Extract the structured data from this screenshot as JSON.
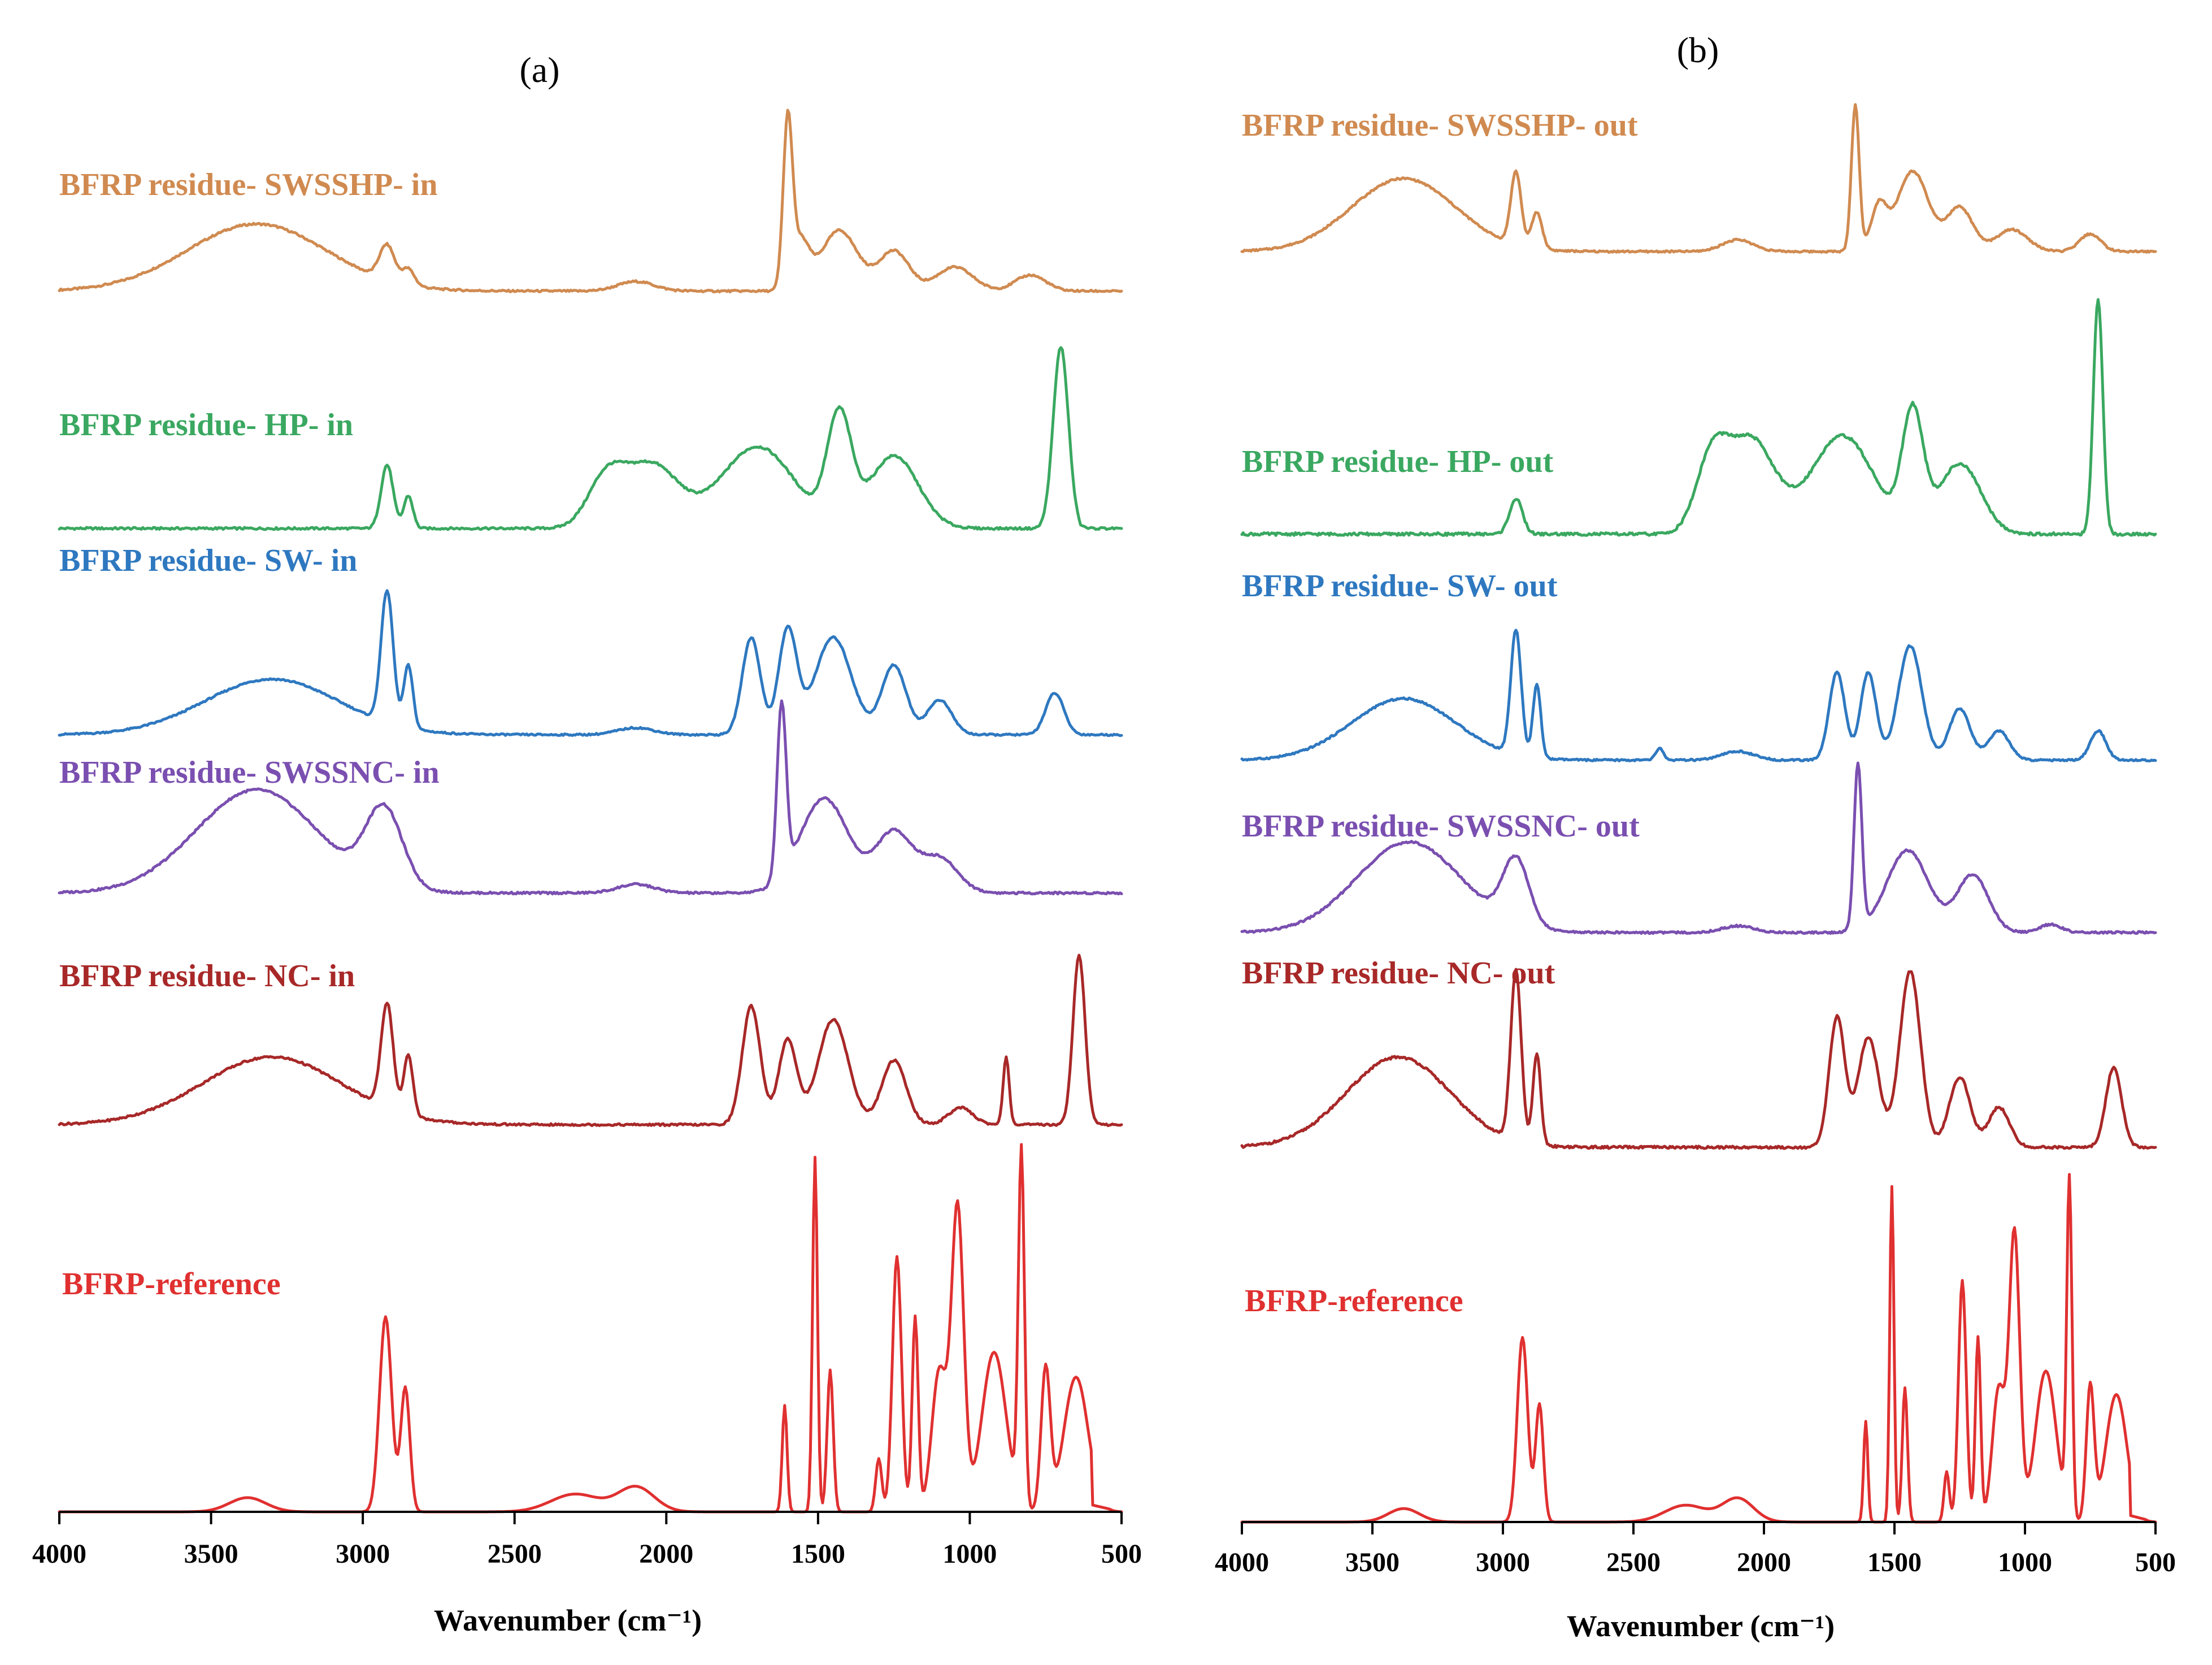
{
  "chart_data": [
    {
      "type": "line",
      "panel": "(a)",
      "xlabel": "Wavenumber (cm⁻¹)",
      "xlim": [
        4000,
        500
      ],
      "x_ticks": [
        "4000",
        "3500",
        "3000",
        "2500",
        "2000",
        "1500",
        "1000",
        "500"
      ],
      "x_tick_values": [
        4000,
        3500,
        3000,
        2500,
        2000,
        1500,
        1000,
        500
      ],
      "ylabel": "",
      "stacked_offset_traces": true,
      "series": [
        {
          "name": "BFRP residue- SWSSHP- in",
          "color": "#d08a50",
          "peaks": [
            [
              3350,
              0.42,
              230
            ],
            [
              2920,
              0.22,
              25
            ],
            [
              2850,
              0.1,
              20
            ],
            [
              2100,
              0.06,
              60
            ],
            [
              1600,
              1.0,
              15
            ],
            [
              1560,
              0.3,
              30
            ],
            [
              1430,
              0.38,
              60
            ],
            [
              1250,
              0.25,
              50
            ],
            [
              1050,
              0.15,
              60
            ],
            [
              800,
              0.1,
              50
            ]
          ],
          "baseline": 0.0,
          "end_drop_at": 640
        },
        {
          "name": "BFRP residue- HP- in",
          "color": "#3aa860",
          "peaks": [
            [
              2920,
              0.35,
              20
            ],
            [
              2850,
              0.18,
              15
            ],
            [
              2200,
              0.25,
              60
            ],
            [
              2050,
              0.35,
              90
            ],
            [
              1700,
              0.45,
              120
            ],
            [
              1430,
              0.6,
              40
            ],
            [
              1250,
              0.4,
              80
            ],
            [
              700,
              1.0,
              25
            ]
          ],
          "baseline": 0.0,
          "end_drop_at": 640
        },
        {
          "name": "BFRP residue- SW- in",
          "color": "#2e78c0",
          "peaks": [
            [
              3300,
              0.4,
              220
            ],
            [
              2920,
              0.95,
              20
            ],
            [
              2850,
              0.45,
              15
            ],
            [
              2100,
              0.05,
              60
            ],
            [
              1720,
              0.7,
              30
            ],
            [
              1600,
              0.75,
              30
            ],
            [
              1450,
              0.7,
              60
            ],
            [
              1250,
              0.5,
              40
            ],
            [
              1100,
              0.25,
              40
            ],
            [
              720,
              0.3,
              30
            ]
          ],
          "baseline": 0.0,
          "end_drop_at": 640
        },
        {
          "name": "BFRP residue- SWSSNC- in",
          "color": "#7a4fb0",
          "peaks": [
            [
              3350,
              0.6,
              200
            ],
            [
              2930,
              0.45,
              60
            ],
            [
              2100,
              0.05,
              60
            ],
            [
              1620,
              1.0,
              15
            ],
            [
              1480,
              0.55,
              80
            ],
            [
              1250,
              0.35,
              60
            ],
            [
              1100,
              0.2,
              60
            ]
          ],
          "baseline": 0.0,
          "end_drop_at": 640
        },
        {
          "name": "BFRP residue- NC- in",
          "color": "#a82828",
          "peaks": [
            [
              3300,
              0.4,
              230
            ],
            [
              2920,
              0.62,
              20
            ],
            [
              2850,
              0.35,
              15
            ],
            [
              1720,
              0.7,
              30
            ],
            [
              1600,
              0.5,
              30
            ],
            [
              1450,
              0.62,
              50
            ],
            [
              1250,
              0.38,
              40
            ],
            [
              1030,
              0.1,
              40
            ],
            [
              880,
              0.4,
              10
            ],
            [
              640,
              1.0,
              20
            ]
          ],
          "baseline": 0.0,
          "end_drop_at": 560
        },
        {
          "name": "BFRP-reference",
          "color": "#e03030",
          "peaks": [
            [
              3380,
              0.04,
              60
            ],
            [
              2925,
              0.55,
              20
            ],
            [
              2860,
              0.35,
              15
            ],
            [
              2300,
              0.05,
              80
            ],
            [
              2100,
              0.07,
              60
            ],
            [
              1610,
              0.3,
              8
            ],
            [
              1510,
              1.0,
              8
            ],
            [
              1460,
              0.4,
              10
            ],
            [
              1300,
              0.15,
              10
            ],
            [
              1240,
              0.72,
              15
            ],
            [
              1180,
              0.55,
              10
            ],
            [
              1100,
              0.4,
              25
            ],
            [
              1040,
              0.85,
              20
            ],
            [
              920,
              0.45,
              40
            ],
            [
              830,
              1.0,
              10
            ],
            [
              750,
              0.4,
              15
            ],
            [
              650,
              0.38,
              40
            ]
          ],
          "baseline": 0.0,
          "end_drop_at": 600
        }
      ]
    },
    {
      "type": "line",
      "panel": "(b)",
      "xlabel": "Wavenumber (cm⁻¹)",
      "xlim": [
        4000,
        500
      ],
      "x_ticks": [
        "4000",
        "3500",
        "3000",
        "2500",
        "2000",
        "1500",
        "1000",
        "500"
      ],
      "x_tick_values": [
        4000,
        3500,
        3000,
        2500,
        2000,
        1500,
        1000,
        500
      ],
      "ylabel": "",
      "stacked_offset_traces": true,
      "series": [
        {
          "name": "BFRP residue- SWSSHP- out",
          "color": "#d08a50",
          "peaks": [
            [
              3380,
              0.5,
              200
            ],
            [
              2950,
              0.5,
              20
            ],
            [
              2870,
              0.25,
              20
            ],
            [
              2100,
              0.08,
              60
            ],
            [
              1650,
              1.0,
              15
            ],
            [
              1560,
              0.3,
              30
            ],
            [
              1430,
              0.55,
              60
            ],
            [
              1250,
              0.3,
              50
            ],
            [
              1050,
              0.15,
              60
            ],
            [
              750,
              0.12,
              40
            ]
          ],
          "baseline": 0.0,
          "end_drop_at": 640
        },
        {
          "name": "BFRP residue- HP- out",
          "color": "#3aa860",
          "peaks": [
            [
              2950,
              0.15,
              25
            ],
            [
              2200,
              0.3,
              60
            ],
            [
              2050,
              0.4,
              90
            ],
            [
              1700,
              0.42,
              120
            ],
            [
              1430,
              0.5,
              40
            ],
            [
              1250,
              0.3,
              80
            ],
            [
              720,
              1.0,
              18
            ]
          ],
          "baseline": 0.0,
          "end_drop_at": 640
        },
        {
          "name": "BFRP residue- SW- out",
          "color": "#2e78c0",
          "peaks": [
            [
              3380,
              0.42,
              200
            ],
            [
              2950,
              0.85,
              20
            ],
            [
              2870,
              0.5,
              15
            ],
            [
              2400,
              0.08,
              15
            ],
            [
              2100,
              0.06,
              60
            ],
            [
              1720,
              0.6,
              30
            ],
            [
              1600,
              0.6,
              30
            ],
            [
              1440,
              0.78,
              45
            ],
            [
              1250,
              0.35,
              40
            ],
            [
              1100,
              0.2,
              40
            ],
            [
              720,
              0.2,
              30
            ]
          ],
          "baseline": 0.0,
          "end_drop_at": 640
        },
        {
          "name": "BFRP residue- SWSSNC- out",
          "color": "#7a4fb0",
          "peaks": [
            [
              3360,
              0.55,
              200
            ],
            [
              2950,
              0.4,
              50
            ],
            [
              2100,
              0.04,
              60
            ],
            [
              1640,
              1.0,
              15
            ],
            [
              1450,
              0.5,
              80
            ],
            [
              1200,
              0.35,
              60
            ],
            [
              900,
              0.05,
              40
            ]
          ],
          "baseline": 0.0,
          "end_drop_at": 640
        },
        {
          "name": "BFRP residue- NC- out",
          "color": "#a82828",
          "peaks": [
            [
              3400,
              0.45,
              200
            ],
            [
              2950,
              0.85,
              20
            ],
            [
              2870,
              0.45,
              15
            ],
            [
              1720,
              0.65,
              30
            ],
            [
              1600,
              0.55,
              40
            ],
            [
              1440,
              0.88,
              40
            ],
            [
              1250,
              0.35,
              40
            ],
            [
              1100,
              0.2,
              40
            ],
            [
              660,
              0.4,
              30
            ]
          ],
          "baseline": 0.0,
          "end_drop_at": 580
        },
        {
          "name": "BFRP-reference",
          "color": "#e03030",
          "peaks": [
            [
              3380,
              0.04,
              60
            ],
            [
              2925,
              0.55,
              20
            ],
            [
              2860,
              0.35,
              15
            ],
            [
              2300,
              0.05,
              80
            ],
            [
              2100,
              0.07,
              60
            ],
            [
              1610,
              0.3,
              8
            ],
            [
              1510,
              1.0,
              8
            ],
            [
              1460,
              0.4,
              10
            ],
            [
              1300,
              0.15,
              10
            ],
            [
              1240,
              0.72,
              15
            ],
            [
              1180,
              0.55,
              10
            ],
            [
              1100,
              0.4,
              25
            ],
            [
              1040,
              0.85,
              20
            ],
            [
              920,
              0.45,
              40
            ],
            [
              830,
              1.0,
              10
            ],
            [
              750,
              0.4,
              15
            ],
            [
              650,
              0.38,
              40
            ]
          ],
          "baseline": 0.0,
          "end_drop_at": 600
        }
      ]
    }
  ]
}
